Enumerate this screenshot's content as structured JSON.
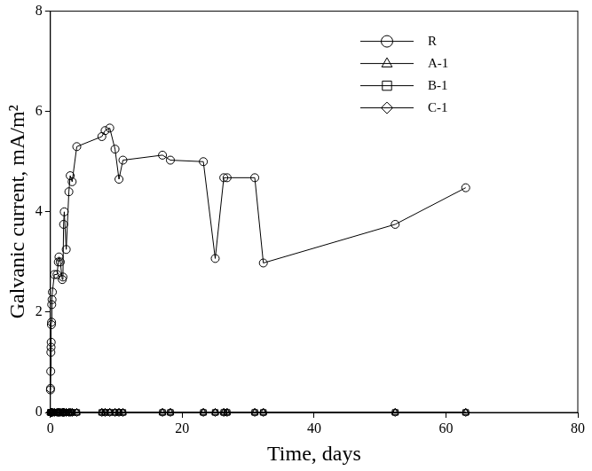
{
  "chart_data": {
    "type": "line",
    "x_label": "Time, days",
    "y_label": "Galvanic current, mA/m²",
    "x": [
      0,
      0.02,
      0.05,
      0.07,
      0.1,
      0.12,
      0.15,
      0.18,
      0.2,
      0.25,
      0.3,
      0.6,
      1.0,
      1.2,
      1.3,
      1.5,
      1.8,
      1.9,
      2.0,
      2.1,
      2.4,
      2.8,
      3.0,
      3.3,
      4.0,
      7.8,
      8.3,
      9.0,
      9.8,
      10.4,
      11.0,
      17.0,
      18.2,
      23.2,
      25.0,
      26.3,
      26.8,
      31.0,
      32.3,
      52.3,
      63.0
    ],
    "series": [
      {
        "name": "R",
        "color": "#000000",
        "marker": "circle",
        "line_style": "solid",
        "values": [
          0.45,
          0.48,
          0.82,
          1.2,
          1.3,
          1.4,
          1.75,
          1.8,
          2.15,
          2.25,
          2.4,
          2.75,
          2.75,
          3.0,
          3.1,
          3.0,
          2.65,
          2.7,
          3.75,
          4.0,
          3.25,
          4.4,
          4.72,
          4.6,
          5.3,
          5.5,
          5.62,
          5.67,
          5.25,
          4.65,
          5.03,
          5.13,
          5.03,
          5.0,
          3.07,
          4.68,
          4.68,
          4.68,
          2.98,
          3.75,
          4.48
        ]
      },
      {
        "name": "A-1",
        "color": "#000000",
        "marker": "triangle",
        "line_style": "solid",
        "values": [
          0,
          0,
          0,
          0,
          0,
          0,
          0,
          0,
          0,
          0,
          0,
          0,
          0,
          0,
          0,
          0,
          0,
          0,
          0,
          0,
          0,
          0,
          0,
          0,
          0,
          0,
          0,
          0,
          0,
          0,
          0,
          0,
          0,
          0,
          0,
          0,
          0,
          0,
          0,
          0,
          0
        ]
      },
      {
        "name": "B-1",
        "color": "#000000",
        "marker": "square",
        "line_style": "solid",
        "values": [
          0,
          0,
          0,
          0,
          0,
          0,
          0,
          0,
          0,
          0,
          0,
          0,
          0,
          0,
          0,
          0,
          0,
          0,
          0,
          0,
          0,
          0,
          0,
          0,
          0,
          0,
          0,
          0,
          0,
          0,
          0,
          0,
          0,
          0,
          0,
          0,
          0,
          0,
          0,
          0,
          0
        ]
      },
      {
        "name": "C-1",
        "color": "#000000",
        "marker": "diamond",
        "line_style": "solid",
        "values": [
          0,
          0,
          0,
          0,
          0,
          0,
          0,
          0,
          0,
          0,
          0,
          0,
          0,
          0,
          0,
          0,
          0,
          0,
          0,
          0,
          0,
          0,
          0,
          0,
          0,
          0,
          0,
          0,
          0,
          0,
          0,
          0,
          0,
          0,
          0,
          0,
          0,
          0,
          0,
          0,
          0
        ]
      }
    ],
    "xlim": [
      0,
      80
    ],
    "xticks": [
      0,
      20,
      40,
      60,
      80
    ],
    "ylim": [
      0,
      8
    ],
    "yticks": [
      0,
      2,
      4,
      6,
      8
    ],
    "grid": false,
    "legend": "upper right"
  }
}
